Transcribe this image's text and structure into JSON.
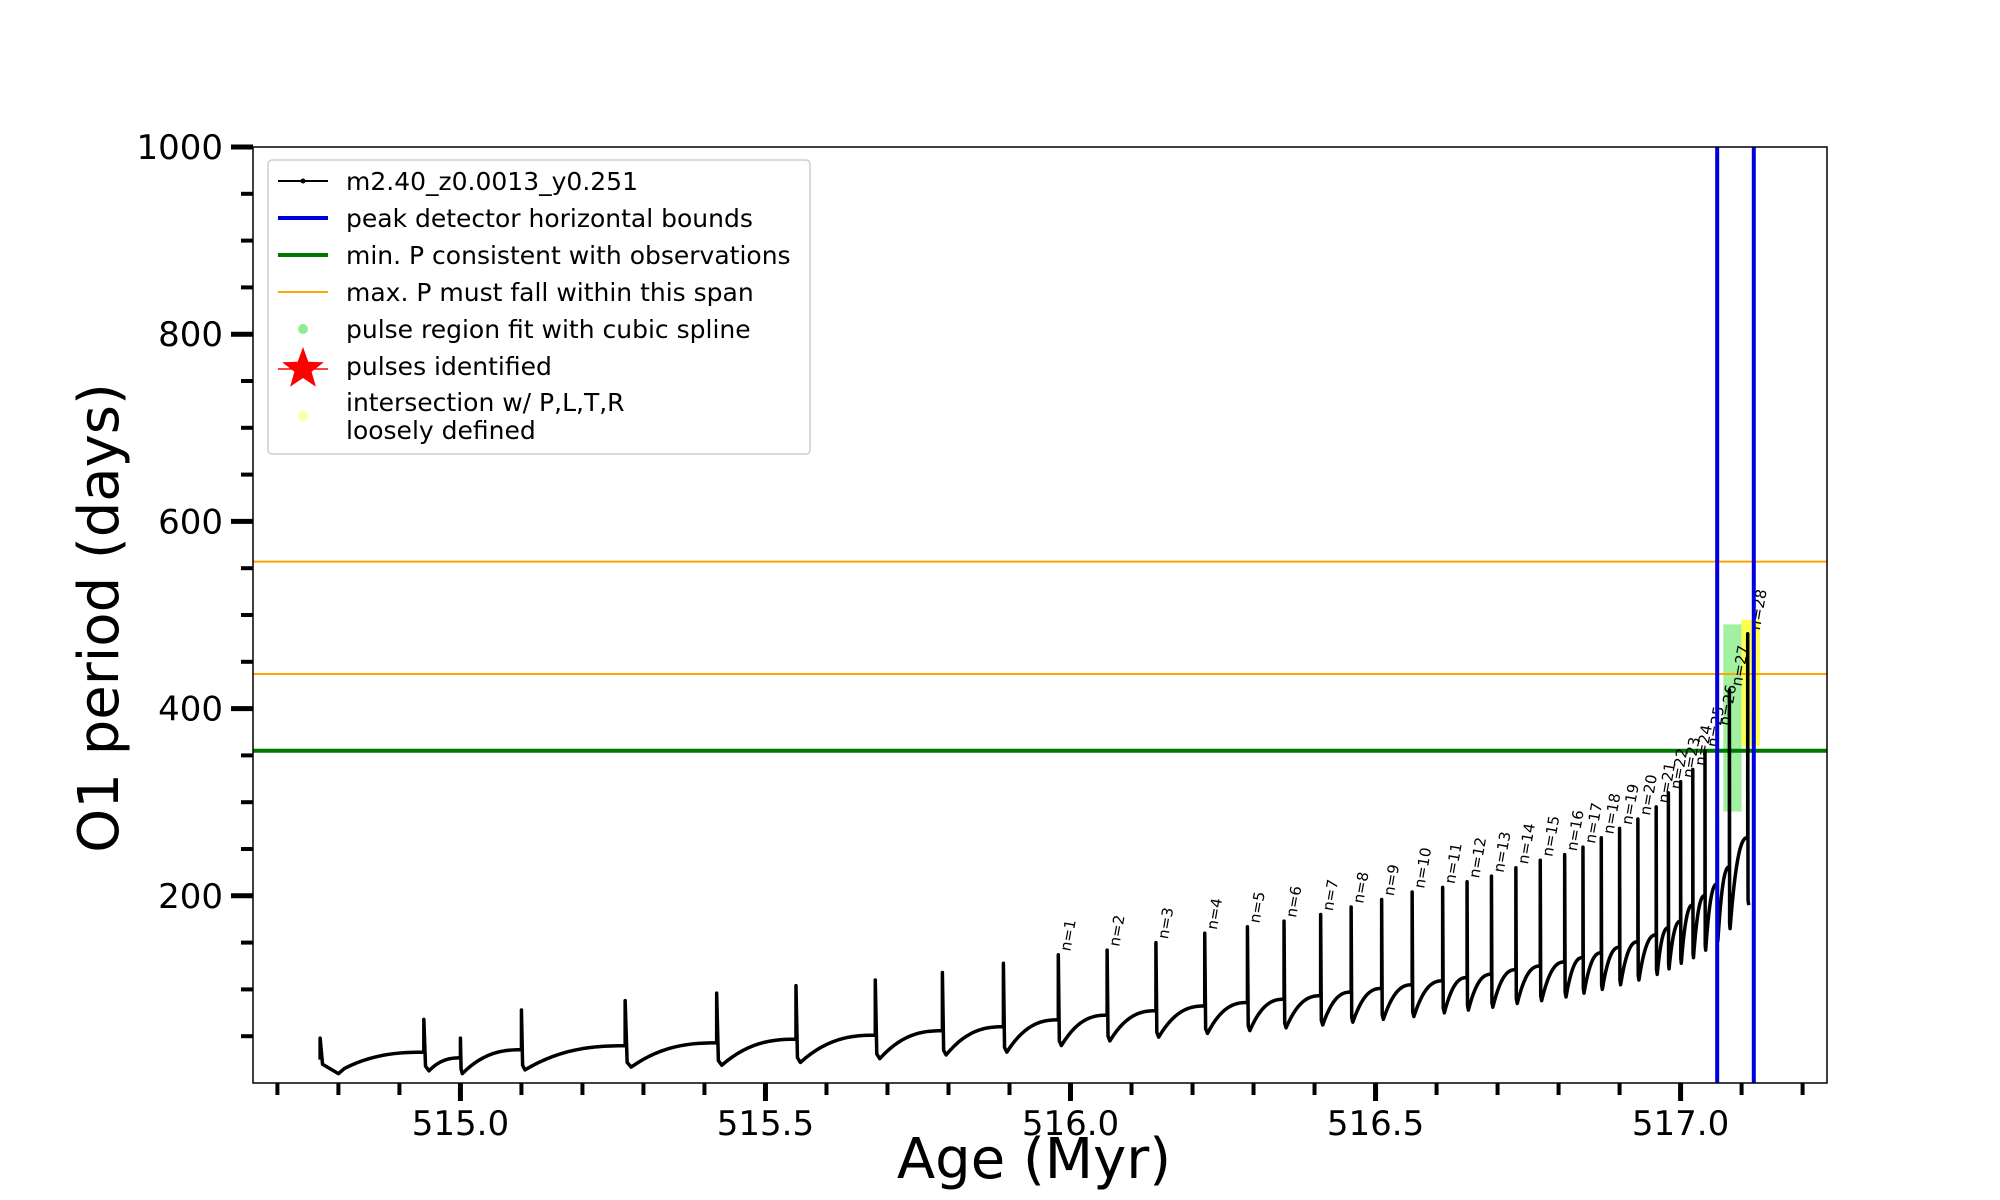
{
  "chart_data": {
    "type": "line",
    "xlabel": "Age (Myr)",
    "ylabel": "O1 period (days)",
    "xlim": [
      514.66,
      517.24
    ],
    "ylim": [
      0,
      1000
    ],
    "xticks_major": [
      515.0,
      515.5,
      516.0,
      516.5,
      517.0
    ],
    "xtick_labels": [
      "515.0",
      "515.5",
      "516.0",
      "516.5",
      "517.0"
    ],
    "yticks_major": [
      200,
      400,
      600,
      800,
      1000
    ],
    "ytick_labels": [
      "200",
      "400",
      "600",
      "800",
      "1000"
    ],
    "grid": false,
    "legend_position": "upper-left",
    "legend": [
      {
        "label": "m2.40_z0.0013_y0.251",
        "style": "black-line-dot",
        "color": "#000000"
      },
      {
        "label": "peak detector horizontal bounds",
        "style": "line",
        "color": "#0000dd"
      },
      {
        "label": "min. P consistent with observations",
        "style": "line",
        "color": "#007700"
      },
      {
        "label": "max. P must fall within this span",
        "style": "thin-line",
        "color": "#ffa500"
      },
      {
        "label": "pulse region fit with cubic spline",
        "style": "dot",
        "color": "#90ee90"
      },
      {
        "label": "pulses identified",
        "style": "star",
        "color": "#ff0000"
      },
      {
        "label_lines": [
          "intersection w/ P,L,T,R",
          "loosely defined"
        ],
        "style": "dot",
        "color": "#ffffaa"
      }
    ],
    "reference_lines": {
      "vertical_blue": [
        517.06,
        517.12
      ],
      "horizontal_green": [
        355
      ],
      "horizontal_orange": [
        437,
        557
      ]
    },
    "pulses": [
      {
        "x": 515.0,
        "peak": 48,
        "min": 10
      },
      {
        "x": 514.94,
        "peak": 68,
        "min": 13
      },
      {
        "x": 515.1,
        "peak": 78,
        "min": 14
      },
      {
        "x": 515.27,
        "peak": 88,
        "min": 17
      },
      {
        "x": 515.42,
        "peak": 96,
        "min": 19
      },
      {
        "x": 515.55,
        "peak": 104,
        "min": 22
      },
      {
        "x": 515.68,
        "peak": 110,
        "min": 26
      },
      {
        "x": 515.79,
        "peak": 118,
        "min": 30
      },
      {
        "x": 515.89,
        "peak": 128,
        "min": 33
      },
      {
        "x": 515.98,
        "peak": 137,
        "min": 40,
        "label": "n=1"
      },
      {
        "x": 516.06,
        "peak": 142,
        "min": 45,
        "label": "n=2"
      },
      {
        "x": 516.14,
        "peak": 150,
        "min": 49,
        "label": "n=3"
      },
      {
        "x": 516.22,
        "peak": 160,
        "min": 53,
        "label": "n=4"
      },
      {
        "x": 516.29,
        "peak": 167,
        "min": 56,
        "label": "n=5"
      },
      {
        "x": 516.35,
        "peak": 173,
        "min": 59,
        "label": "n=6"
      },
      {
        "x": 516.41,
        "peak": 180,
        "min": 62,
        "label": "n=7"
      },
      {
        "x": 516.46,
        "peak": 188,
        "min": 65,
        "label": "n=8"
      },
      {
        "x": 516.51,
        "peak": 196,
        "min": 68,
        "label": "n=9"
      },
      {
        "x": 516.56,
        "peak": 204,
        "min": 71,
        "label": "n=10"
      },
      {
        "x": 516.61,
        "peak": 209,
        "min": 75,
        "label": "n=11"
      },
      {
        "x": 516.65,
        "peak": 215,
        "min": 78,
        "label": "n=12"
      },
      {
        "x": 516.69,
        "peak": 221,
        "min": 81,
        "label": "n=13"
      },
      {
        "x": 516.73,
        "peak": 230,
        "min": 85,
        "label": "n=14"
      },
      {
        "x": 516.77,
        "peak": 238,
        "min": 88,
        "label": "n=15"
      },
      {
        "x": 516.81,
        "peak": 244,
        "min": 92,
        "label": "n=16"
      },
      {
        "x": 516.84,
        "peak": 252,
        "min": 96,
        "label": "n=17"
      },
      {
        "x": 516.87,
        "peak": 262,
        "min": 100,
        "label": "n=18"
      },
      {
        "x": 516.9,
        "peak": 272,
        "min": 105,
        "label": "n=19"
      },
      {
        "x": 516.93,
        "peak": 282,
        "min": 110,
        "label": "n=20"
      },
      {
        "x": 516.96,
        "peak": 295,
        "min": 116,
        "label": "n=21"
      },
      {
        "x": 516.98,
        "peak": 310,
        "min": 122,
        "label": "n=22"
      },
      {
        "x": 517.0,
        "peak": 322,
        "min": 128,
        "label": "n=23"
      },
      {
        "x": 517.02,
        "peak": 335,
        "min": 134,
        "label": "n=24"
      },
      {
        "x": 517.04,
        "peak": 355,
        "min": 142,
        "label": "n=25"
      },
      {
        "x": 517.06,
        "peak": 378,
        "min": 152,
        "label": "n=26"
      },
      {
        "x": 517.08,
        "peak": 420,
        "min": 165,
        "label": "n=27"
      },
      {
        "x": 517.11,
        "peak": 480,
        "min": 190,
        "label": "n=28"
      }
    ],
    "highlight_regions": [
      {
        "color": "#90ee90",
        "x": [
          517.07,
          517.1
        ],
        "y": [
          290,
          490
        ]
      },
      {
        "color": "#ffff33",
        "x": [
          517.1,
          517.13
        ],
        "y": [
          360,
          495
        ]
      }
    ]
  }
}
